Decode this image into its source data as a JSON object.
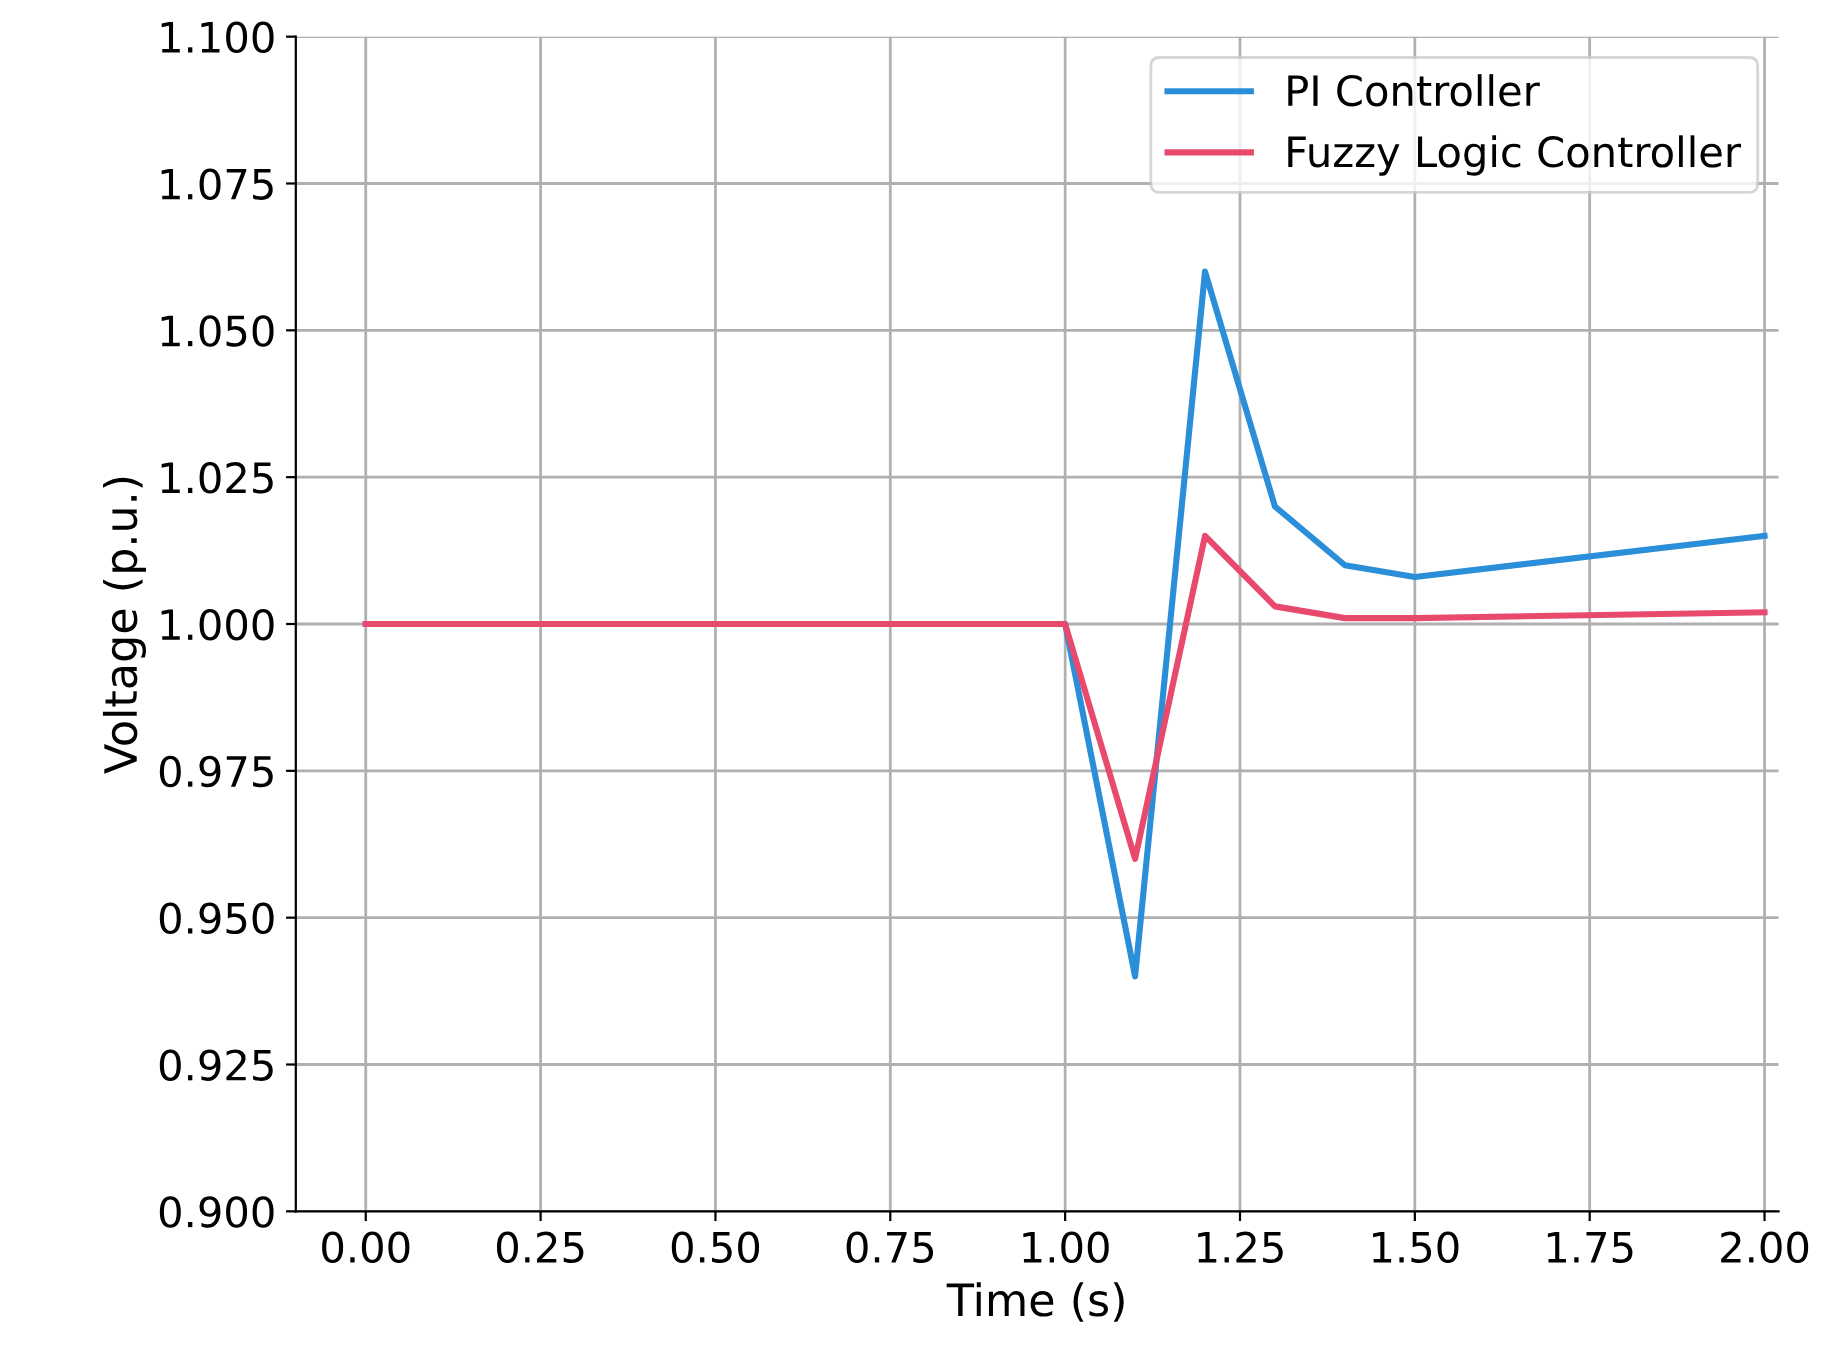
{
  "chart_data": {
    "type": "line",
    "xlabel": "Time (s)",
    "ylabel": "Voltage (p.u.)",
    "x": [
      0,
      1.0,
      1.1,
      1.2,
      1.3,
      1.4,
      1.5,
      2.0
    ],
    "series": [
      {
        "name": "PI Controller",
        "color": "#2a8fd8",
        "values": [
          1.0,
          1.0,
          0.94,
          1.06,
          1.02,
          1.01,
          1.008,
          1.015
        ]
      },
      {
        "name": "Fuzzy Logic Controller",
        "color": "#e84a6e",
        "values": [
          1.0,
          1.0,
          0.96,
          1.015,
          1.003,
          1.001,
          1.001,
          1.002
        ]
      }
    ],
    "xlim": [
      -0.1,
      2.02
    ],
    "ylim": [
      0.9,
      1.1
    ],
    "xticks": [
      {
        "value": 0,
        "label": "0.00"
      },
      0.25,
      {
        "value": 0.5,
        "label": "0.50"
      },
      0.75,
      {
        "value": 1,
        "label": "1.00"
      },
      1.25,
      {
        "value": 1.5,
        "label": "1.50"
      },
      1.75,
      {
        "value": 2,
        "label": "2.00"
      }
    ],
    "yticks": [
      {
        "value": 0.9,
        "label": "0.900"
      },
      0.925,
      {
        "value": 0.95,
        "label": "0.950"
      },
      0.975,
      {
        "value": 1.0,
        "label": "1.000"
      },
      1.025,
      {
        "value": 1.05,
        "label": "1.050"
      },
      1.075,
      {
        "value": 1.1,
        "label": "1.100"
      }
    ],
    "grid": true,
    "legend": "top right",
    "marker": "none",
    "line_style": "solid"
  }
}
